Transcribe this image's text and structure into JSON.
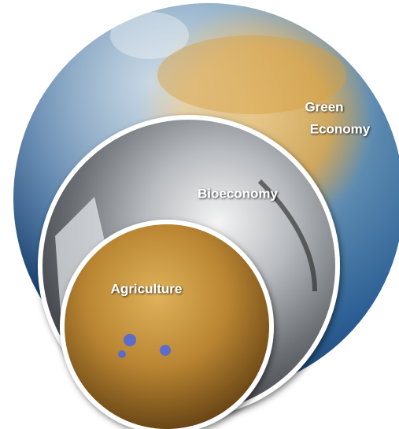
{
  "nodes": [
    {
      "label_lines": [
        "Green",
        "Economy"
      ]
    },
    {
      "label": "Bioeconomy"
    },
    {
      "label": "Agriculture"
    }
  ]
}
